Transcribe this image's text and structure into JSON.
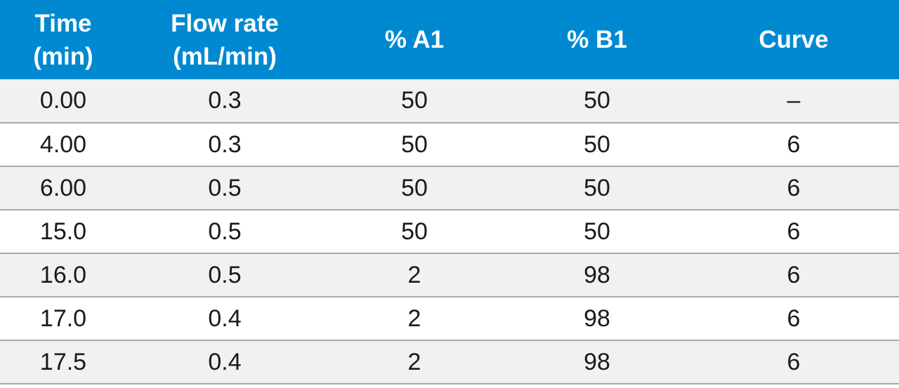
{
  "table": {
    "header_bg": "#0089d0",
    "row_alt_bg": "#f1f1f2",
    "columns": [
      {
        "line1": "Time",
        "line2": "(min)"
      },
      {
        "line1": "Flow rate",
        "line2": "(mL/min)"
      },
      {
        "line1": "% A1",
        "line2": ""
      },
      {
        "line1": "% B1",
        "line2": ""
      },
      {
        "line1": "Curve",
        "line2": ""
      }
    ],
    "rows": [
      [
        "0.00",
        "0.3",
        "50",
        "50",
        "–"
      ],
      [
        "4.00",
        "0.3",
        "50",
        "50",
        "6"
      ],
      [
        "6.00",
        "0.5",
        "50",
        "50",
        "6"
      ],
      [
        "15.0",
        "0.5",
        "50",
        "50",
        "6"
      ],
      [
        "16.0",
        "0.5",
        "2",
        "98",
        "6"
      ],
      [
        "17.0",
        "0.4",
        "2",
        "98",
        "6"
      ],
      [
        "17.5",
        "0.4",
        "2",
        "98",
        "6"
      ]
    ]
  }
}
